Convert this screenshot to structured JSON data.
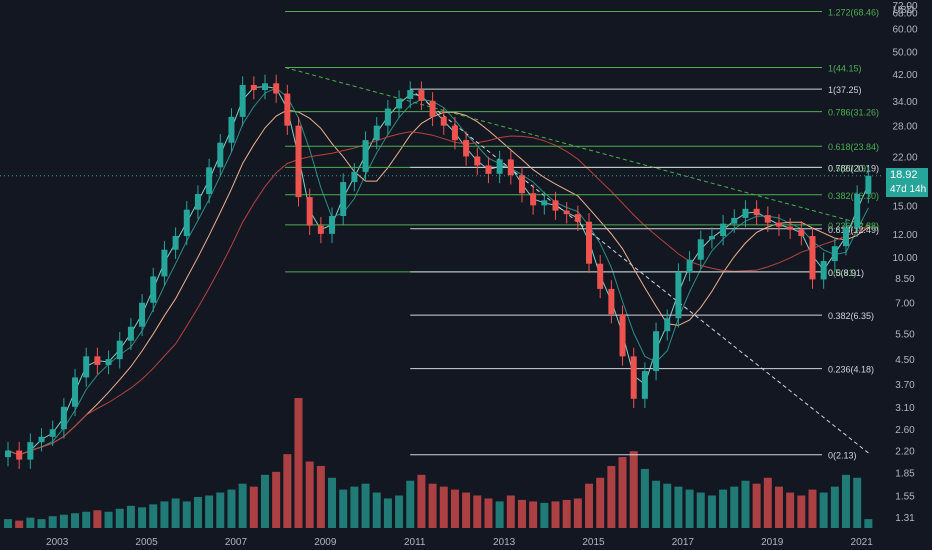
{
  "currency": "USD",
  "current_price": "18.92",
  "countdown": "47d 14h",
  "colors": {
    "background": "#131722",
    "up": "#26a69a",
    "down": "#ef5350",
    "vol_up": "#26a69a",
    "vol_down": "#ef5350",
    "fib_green": "#4caf50",
    "fib_white": "#d1d4dc",
    "text": "#b2b5be",
    "ma_fast": "#7dd3c8",
    "ma_mid": "#2a8f87",
    "ma_slow": "#f0b08c",
    "ma_long": "#b7433f"
  },
  "chart_data": {
    "type": "candlestick",
    "title": "",
    "xlabel": "",
    "ylabel": "",
    "y_scale": "log",
    "ylim": [
      1.2,
      72
    ],
    "xlim": [
      2002.0,
      2021.6
    ],
    "grid": false,
    "x_tick_labels": [
      "2003",
      "2005",
      "2007",
      "2009",
      "2011",
      "2013",
      "2015",
      "2017",
      "2019",
      "2021"
    ],
    "y_tick_labels": [
      "72.00",
      "68.00",
      "60.00",
      "50.00",
      "42.00",
      "34.00",
      "28.00",
      "22.00",
      "18.00",
      "15.00",
      "12.00",
      "10.00",
      "8.50",
      "7.00",
      "5.50",
      "4.50",
      "3.70",
      "3.10",
      "2.60",
      "2.20",
      "1.85",
      "1.55",
      "1.31"
    ],
    "fib_upper": [
      {
        "label": "1.272(68.46)",
        "value": 68.46
      },
      {
        "label": "1(44.15)",
        "value": 44.15
      },
      {
        "label": "0.786(31.26)",
        "value": 31.26
      },
      {
        "label": "0.618(23.84)",
        "value": 23.84
      },
      {
        "label": "0.5(20.19)",
        "value": 20.19
      },
      {
        "label": "0.382(16.30)",
        "value": 16.3
      },
      {
        "label": "0.236(12.88)",
        "value": 12.88
      },
      {
        "label": "0(8.91)",
        "value": 8.91
      }
    ],
    "fib_lower": [
      {
        "label": "1(37.25)",
        "value": 37.25
      },
      {
        "label": "0.786(20.19)",
        "value": 20.19
      },
      {
        "label": "0.618(12.49)",
        "value": 12.49
      },
      {
        "label": "0.5(8.91)",
        "value": 8.91
      },
      {
        "label": "0.382(6.35)",
        "value": 6.35
      },
      {
        "label": "0.236(4.18)",
        "value": 4.18
      },
      {
        "label": "0(2.13)",
        "value": 2.13
      }
    ],
    "trendlines": [
      {
        "from": [
          2008.2,
          44.15
        ],
        "to": [
          2021.5,
          12.5
        ],
        "color": "green"
      },
      {
        "from": [
          2011.0,
          37.25
        ],
        "to": [
          2021.3,
          2.13
        ],
        "color": "white"
      }
    ],
    "x": [
      2002.0,
      2002.25,
      2002.5,
      2002.75,
      2003.0,
      2003.25,
      2003.5,
      2003.75,
      2004.0,
      2004.25,
      2004.5,
      2004.75,
      2005.0,
      2005.25,
      2005.5,
      2005.75,
      2006.0,
      2006.25,
      2006.5,
      2006.75,
      2007.0,
      2007.25,
      2007.5,
      2007.75,
      2008.0,
      2008.25,
      2008.5,
      2008.75,
      2009.0,
      2009.25,
      2009.5,
      2009.75,
      2010.0,
      2010.25,
      2010.5,
      2010.75,
      2011.0,
      2011.25,
      2011.5,
      2011.75,
      2012.0,
      2012.25,
      2012.5,
      2012.75,
      2013.0,
      2013.25,
      2013.5,
      2013.75,
      2014.0,
      2014.25,
      2014.5,
      2014.75,
      2015.0,
      2015.25,
      2015.5,
      2015.75,
      2016.0,
      2016.25,
      2016.5,
      2016.75,
      2017.0,
      2017.25,
      2017.5,
      2017.75,
      2018.0,
      2018.25,
      2018.5,
      2018.75,
      2019.0,
      2019.25,
      2019.5,
      2019.75,
      2020.0,
      2020.25,
      2020.5,
      2020.75,
      2021.0,
      2021.25
    ],
    "close": [
      2.2,
      2.05,
      2.35,
      2.45,
      2.6,
      3.1,
      3.9,
      4.6,
      4.3,
      4.5,
      5.2,
      5.8,
      7.0,
      8.6,
      10.6,
      11.8,
      14.5,
      16.4,
      20.2,
      24.5,
      30.0,
      38.5,
      37.0,
      39.0,
      36.0,
      28.0,
      16.0,
      12.8,
      12.0,
      13.8,
      18.0,
      19.5,
      25.0,
      28.0,
      32.0,
      34.5,
      37.0,
      34.0,
      30.0,
      28.0,
      25.0,
      22.0,
      20.5,
      19.2,
      21.5,
      19.0,
      16.5,
      15.0,
      15.6,
      14.4,
      14.0,
      13.2,
      9.5,
      7.8,
      6.4,
      4.6,
      3.3,
      4.1,
      5.6,
      6.2,
      8.9,
      9.8,
      11.5,
      11.8,
      13.0,
      13.6,
      14.6,
      13.9,
      13.1,
      12.7,
      12.4,
      11.8,
      8.4,
      9.7,
      10.9,
      12.6,
      16.4,
      18.92
    ],
    "volume": [
      6,
      5,
      7,
      6,
      8,
      9,
      10,
      11,
      12,
      11,
      13,
      15,
      14,
      16,
      18,
      20,
      18,
      21,
      22,
      24,
      26,
      30,
      28,
      36,
      38,
      50,
      88,
      45,
      42,
      34,
      26,
      28,
      30,
      24,
      20,
      22,
      32,
      36,
      30,
      28,
      26,
      24,
      22,
      20,
      18,
      22,
      19,
      18,
      17,
      18,
      19,
      20,
      30,
      34,
      42,
      48,
      52,
      40,
      32,
      30,
      28,
      26,
      24,
      22,
      26,
      28,
      32,
      30,
      34,
      28,
      24,
      22,
      26,
      24,
      28,
      36,
      34,
      6
    ]
  }
}
